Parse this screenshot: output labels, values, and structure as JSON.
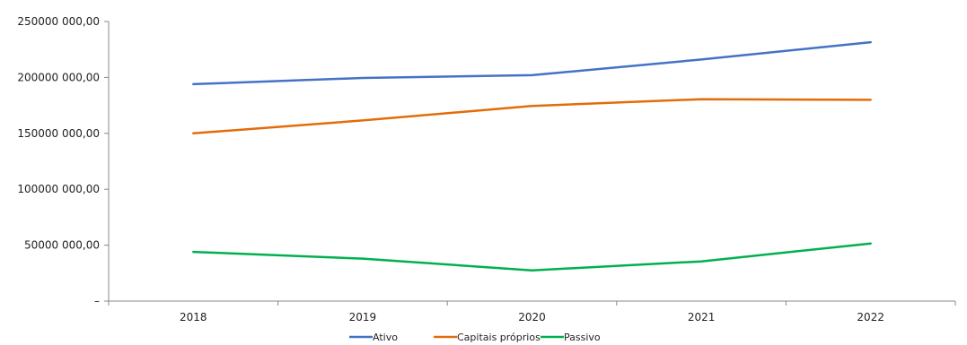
{
  "chart_data": {
    "type": "line",
    "title": "",
    "xlabel": "",
    "ylabel": "",
    "categories": [
      "2018",
      "2019",
      "2020",
      "2021",
      "2022"
    ],
    "ylim": [
      0,
      250000
    ],
    "y_ticks": [
      {
        "value": 0,
        "label": "–"
      },
      {
        "value": 50000,
        "label": "50000 000,00"
      },
      {
        "value": 100000,
        "label": "100000 000,00"
      },
      {
        "value": 150000,
        "label": "150000 000,00"
      },
      {
        "value": 200000,
        "label": "200000 000,00"
      },
      {
        "value": 250000,
        "label": "250000 000,00"
      }
    ],
    "grid": false,
    "legend_position": "bottom",
    "series": [
      {
        "name": "Ativo",
        "color": "#4472C4",
        "values": [
          194000,
          199500,
          202000,
          216000,
          231500
        ]
      },
      {
        "name": "Capitais próprios",
        "color": "#E36C0A",
        "values": [
          150000,
          161500,
          174500,
          180500,
          180000
        ]
      },
      {
        "name": "Passivo",
        "color": "#00B050",
        "values": [
          44000,
          38000,
          27500,
          35500,
          51500
        ]
      }
    ]
  }
}
